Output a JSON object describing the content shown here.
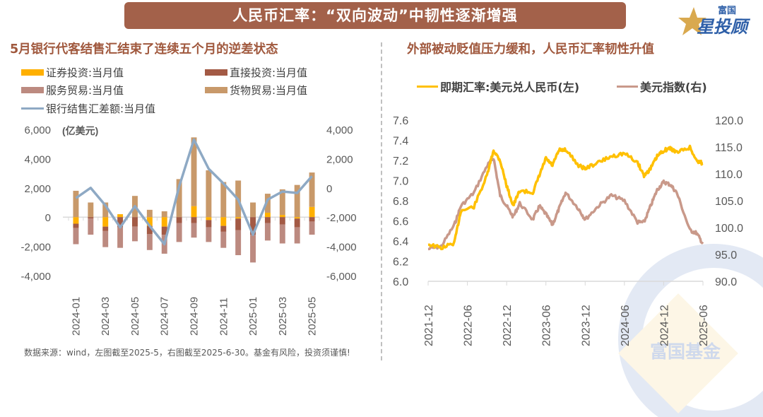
{
  "header": {
    "title": "人民币汇率：“双向波动”中韧性逐渐增强",
    "logo_top": "富国",
    "logo_main": "星投顾"
  },
  "left_panel": {
    "subtitle": "5月银行代客结售汇结束了连续五个月的逆差状态",
    "unit_label": "(亿美元)"
  },
  "right_panel": {
    "subtitle": "外部被动贬值压力缓和，人民币汇率韧性升值"
  },
  "footnote": "数据来源：wind，左图截至2025-5，右图截至2025-6-30。基金有风险，投资须谨慎!",
  "watermark": "富国基金",
  "colors": {
    "banner": "#a3614a",
    "subtitle": "#a0583d",
    "securities": "#ffb000",
    "fdi": "#a35a45",
    "services": "#bc8a80",
    "goods": "#c8996a",
    "bank_line": "#8ea9c4",
    "fx": "#ffc000",
    "dxy": "#c9998a"
  },
  "chart_data": [
    {
      "type": "bar",
      "subtype": "stacked-bar-with-line",
      "title": "5月银行代客结售汇结束了连续五个月的逆差状态",
      "ylabel": "(亿美元)",
      "categories": [
        "2024-01",
        "2024-02",
        "2024-03",
        "2024-04",
        "2024-05",
        "2024-06",
        "2024-07",
        "2024-08",
        "2024-09",
        "2024-10",
        "2024-11",
        "2024-12",
        "2025-01",
        "2025-02",
        "2025-03",
        "2025-04",
        "2025-05"
      ],
      "xtick_labels": [
        "2024-01",
        "2024-03",
        "2024-05",
        "2024-07",
        "2024-09",
        "2024-11",
        "2025-01",
        "2025-03",
        "2025-05"
      ],
      "ylim_left": [
        -4000,
        6000
      ],
      "yticks_left": [
        "6,000",
        "4,000",
        "2,000",
        "0",
        "-2,000",
        "-4,000"
      ],
      "ylim_right": [
        -6000,
        4000
      ],
      "yticks_right": [
        "4,000",
        "2,000",
        "0",
        "-2,000",
        "-4,000",
        "-6,000"
      ],
      "series": [
        {
          "name": "证券投资:当月值",
          "kind": "bar",
          "axis": "left",
          "values": [
            -450,
            0,
            -650,
            200,
            0,
            -600,
            -650,
            0,
            750,
            -200,
            -600,
            -100,
            0,
            300,
            150,
            -100,
            700
          ]
        },
        {
          "name": "直接投资:当月值",
          "kind": "bar",
          "axis": "left",
          "values": [
            -300,
            -100,
            -300,
            -700,
            -650,
            -550,
            -550,
            -400,
            -400,
            -500,
            -400,
            -800,
            -1200,
            -400,
            -500,
            -600,
            -300
          ]
        },
        {
          "name": "服务贸易:当月值",
          "kind": "bar",
          "axis": "left",
          "values": [
            -1100,
            -1100,
            -1100,
            -1400,
            -1000,
            -1100,
            -1300,
            -1300,
            -1000,
            -1000,
            -1100,
            -1700,
            -1900,
            -1200,
            -1300,
            -1100,
            -900
          ]
        },
        {
          "name": "货物贸易:当月值",
          "kind": "bar",
          "axis": "left",
          "values": [
            1800,
            1000,
            1000,
            0,
            1450,
            500,
            400,
            2600,
            4700,
            3200,
            2400,
            2500,
            1000,
            1300,
            1750,
            2200,
            2350
          ]
        },
        {
          "name": "银行结售汇差额:当月值",
          "kind": "line",
          "axis": "right",
          "values": [
            -700,
            0,
            -1200,
            -2700,
            -1250,
            -2600,
            -3850,
            100,
            3300,
            1300,
            300,
            -800,
            -3200,
            -800,
            -250,
            -350,
            800
          ]
        }
      ],
      "legend": "top-left"
    },
    {
      "type": "line",
      "title": "外部被动贬值压力缓和，人民币汇率韧性升值",
      "x_range": [
        "2021-12",
        "2025-06"
      ],
      "xtick_labels": [
        "2021-12",
        "2022-06",
        "2022-12",
        "2023-06",
        "2023-12",
        "2024-06",
        "2024-12",
        "2025-06"
      ],
      "ylim_left": [
        6.0,
        7.6
      ],
      "yticks_left": [
        "7.6",
        "7.4",
        "7.2",
        "7.0",
        "6.8",
        "6.6",
        "6.4",
        "6.2",
        "6.0"
      ],
      "ylim_right": [
        90.0,
        120.0
      ],
      "yticks_right": [
        "120.0",
        "115.0",
        "110.0",
        "105.0",
        "100.0",
        "95.0",
        "90.0"
      ],
      "series": [
        {
          "name": "即期汇率:美元兑人民币(左)",
          "axis": "left",
          "x": [
            "2021-12",
            "2022-02",
            "2022-04",
            "2022-05",
            "2022-07",
            "2022-09",
            "2022-10",
            "2022-11",
            "2022-12",
            "2023-01",
            "2023-02",
            "2023-04",
            "2023-05",
            "2023-06",
            "2023-07",
            "2023-08",
            "2023-09",
            "2023-11",
            "2023-12",
            "2024-02",
            "2024-04",
            "2024-06",
            "2024-08",
            "2024-09",
            "2024-10",
            "2024-11",
            "2024-12",
            "2025-01",
            "2025-02",
            "2025-04",
            "2025-05",
            "2025-06"
          ],
          "values": [
            6.37,
            6.33,
            6.38,
            6.7,
            6.74,
            7.05,
            7.3,
            7.2,
            6.95,
            6.75,
            6.9,
            6.88,
            7.05,
            7.22,
            7.15,
            7.3,
            7.31,
            7.15,
            7.12,
            7.18,
            7.24,
            7.27,
            7.18,
            7.05,
            7.12,
            7.24,
            7.3,
            7.32,
            7.28,
            7.33,
            7.2,
            7.17
          ]
        },
        {
          "name": "美元指数(右)",
          "axis": "right",
          "x": [
            "2021-12",
            "2022-02",
            "2022-04",
            "2022-05",
            "2022-07",
            "2022-09",
            "2022-10",
            "2022-11",
            "2022-12",
            "2023-01",
            "2023-02",
            "2023-04",
            "2023-05",
            "2023-06",
            "2023-07",
            "2023-08",
            "2023-09",
            "2023-11",
            "2023-12",
            "2024-02",
            "2024-04",
            "2024-06",
            "2024-08",
            "2024-09",
            "2024-10",
            "2024-11",
            "2024-12",
            "2025-01",
            "2025-02",
            "2025-04",
            "2025-05",
            "2025-06"
          ],
          "values": [
            96.0,
            96.5,
            100.5,
            104.0,
            106.5,
            111.5,
            113.0,
            106.0,
            104.0,
            102.0,
            104.5,
            101.5,
            104.0,
            102.5,
            100.5,
            103.5,
            106.5,
            103.5,
            101.5,
            104.0,
            106.0,
            105.0,
            101.0,
            101.0,
            104.0,
            107.0,
            108.5,
            108.0,
            106.5,
            99.5,
            99.0,
            97.0
          ]
        }
      ],
      "legend": "top"
    }
  ]
}
